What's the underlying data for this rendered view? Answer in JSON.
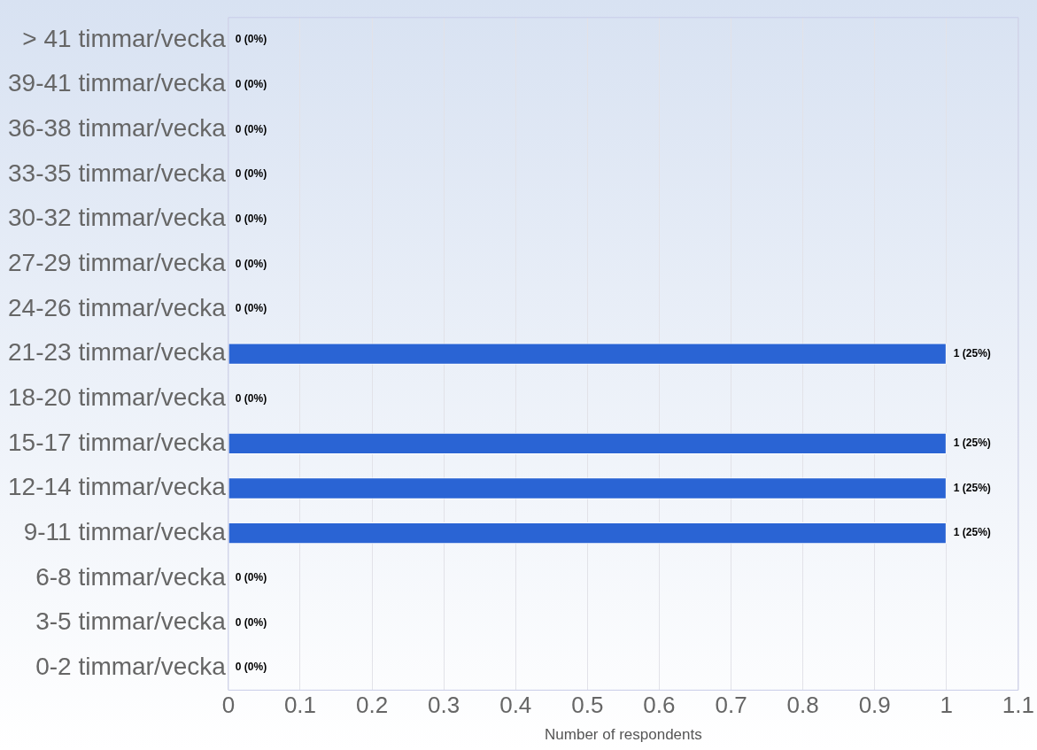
{
  "chart_data": {
    "type": "bar",
    "orientation": "horizontal",
    "xlabel": "Number of respondents",
    "categories": [
      "> 41 timmar/vecka",
      "39-41 timmar/vecka",
      "36-38 timmar/vecka",
      "33-35 timmar/vecka",
      "30-32 timmar/vecka",
      "27-29 timmar/vecka",
      "24-26 timmar/vecka",
      "21-23 timmar/vecka",
      "18-20 timmar/vecka",
      "15-17 timmar/vecka",
      "12-14 timmar/vecka",
      "9-11 timmar/vecka",
      "6-8 timmar/vecka",
      "3-5 timmar/vecka",
      "0-2 timmar/vecka"
    ],
    "values": [
      0,
      0,
      0,
      0,
      0,
      0,
      0,
      1,
      0,
      1,
      1,
      1,
      0,
      0,
      0
    ],
    "value_labels": [
      "0 (0%)",
      "0 (0%)",
      "0 (0%)",
      "0 (0%)",
      "0 (0%)",
      "0 (0%)",
      "0 (0%)",
      "1 (25%)",
      "0 (0%)",
      "1 (25%)",
      "1 (25%)",
      "1 (25%)",
      "0 (0%)",
      "0 (0%)",
      "0 (0%)"
    ],
    "color": "#2a64d4",
    "xlim": [
      0,
      1.1
    ],
    "xticks": [
      0,
      0.1,
      0.2,
      0.3,
      0.4,
      0.5,
      0.6,
      0.7,
      0.8,
      0.9,
      1,
      1.1
    ],
    "grid": "x",
    "legend": false
  }
}
